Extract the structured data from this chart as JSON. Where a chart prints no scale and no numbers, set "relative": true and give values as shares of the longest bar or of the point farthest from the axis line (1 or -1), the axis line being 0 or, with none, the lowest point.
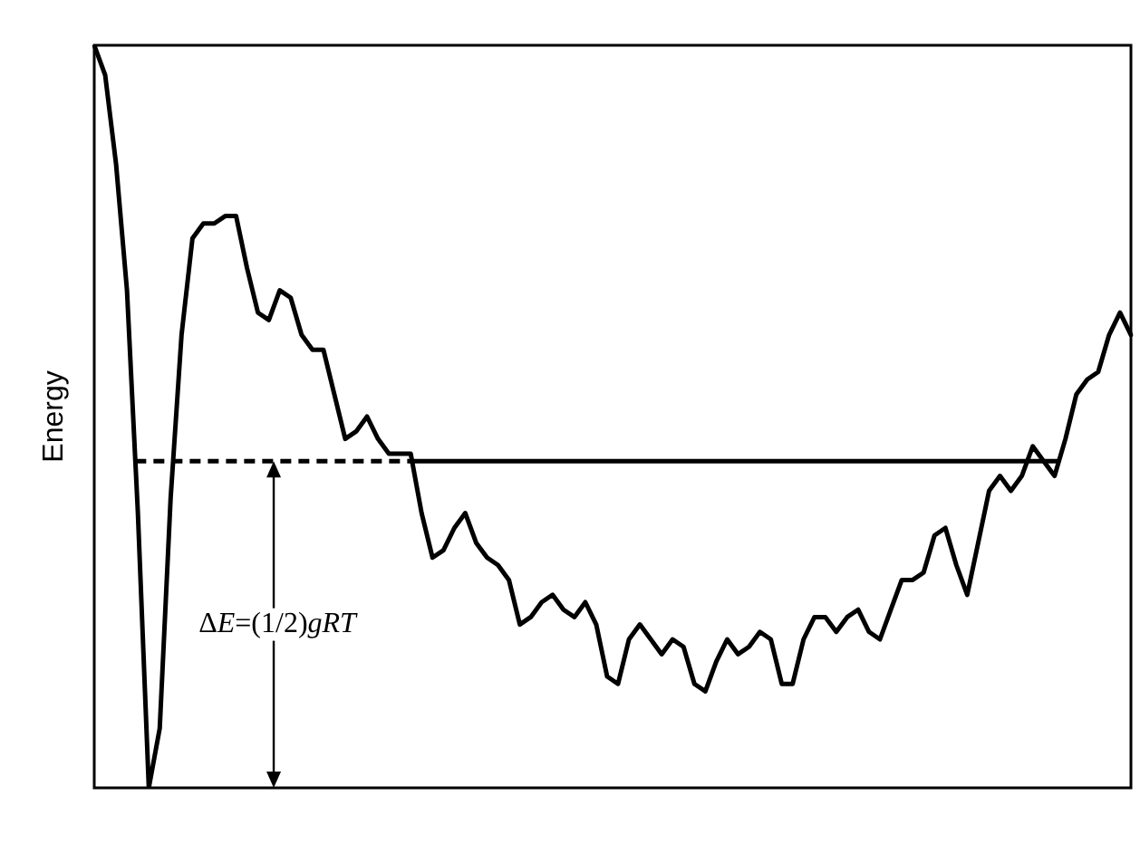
{
  "chart_data": {
    "type": "line",
    "relative": true,
    "ylabel": "Energy",
    "color": "#000000",
    "marker": "none",
    "line_style": "solid",
    "legend": false,
    "grid": false,
    "categories": [
      null,
      null,
      null,
      null,
      null,
      null,
      null,
      null,
      null,
      null,
      null,
      null,
      null,
      null,
      null,
      null,
      null,
      null,
      null,
      null,
      null,
      null,
      null,
      null,
      null,
      null,
      null,
      null,
      null,
      null,
      null,
      null,
      null,
      null,
      null,
      null,
      null,
      null,
      null,
      null,
      null,
      null,
      null,
      null,
      null,
      null,
      null,
      null,
      null,
      null,
      null,
      null,
      null,
      null,
      null,
      null,
      null,
      null,
      null,
      null,
      null,
      null,
      null,
      null,
      null,
      null,
      null,
      null,
      null,
      null,
      null,
      null,
      null,
      null,
      null,
      null,
      null,
      null,
      null,
      null,
      null,
      null,
      null,
      null,
      null,
      null,
      null,
      null,
      null,
      null,
      null,
      null,
      null,
      null,
      null,
      null
    ],
    "values": [
      1.0,
      0.96,
      0.84,
      0.67,
      0.37,
      0.0,
      0.08,
      0.39,
      0.61,
      0.74,
      0.76,
      0.76,
      0.77,
      0.77,
      0.7,
      0.64,
      0.63,
      0.67,
      0.66,
      0.61,
      0.59,
      0.59,
      0.53,
      0.47,
      0.48,
      0.5,
      0.47,
      0.45,
      0.45,
      0.45,
      0.37,
      0.31,
      0.32,
      0.35,
      0.37,
      0.33,
      0.31,
      0.3,
      0.28,
      0.22,
      0.23,
      0.25,
      0.26,
      0.24,
      0.23,
      0.25,
      0.22,
      0.15,
      0.14,
      0.2,
      0.22,
      0.2,
      0.18,
      0.2,
      0.19,
      0.14,
      0.13,
      0.17,
      0.2,
      0.18,
      0.19,
      0.21,
      0.2,
      0.14,
      0.14,
      0.2,
      0.23,
      0.23,
      0.21,
      0.23,
      0.24,
      0.21,
      0.2,
      0.24,
      0.28,
      0.28,
      0.29,
      0.34,
      0.35,
      0.3,
      0.26,
      0.33,
      0.4,
      0.42,
      0.4,
      0.42,
      0.46,
      0.44,
      0.42,
      0.47,
      0.53,
      0.55,
      0.56,
      0.61,
      0.64,
      0.61
    ],
    "ref_lines": [
      {
        "axis": "y",
        "value": 0.44,
        "color": "#000000",
        "line_style": "dashed"
      },
      {
        "axis": "y",
        "value": 0.44,
        "color": "#000000",
        "line_style": "solid"
      }
    ],
    "annotations": [
      "ΔE=(1/2)gRT"
    ]
  }
}
